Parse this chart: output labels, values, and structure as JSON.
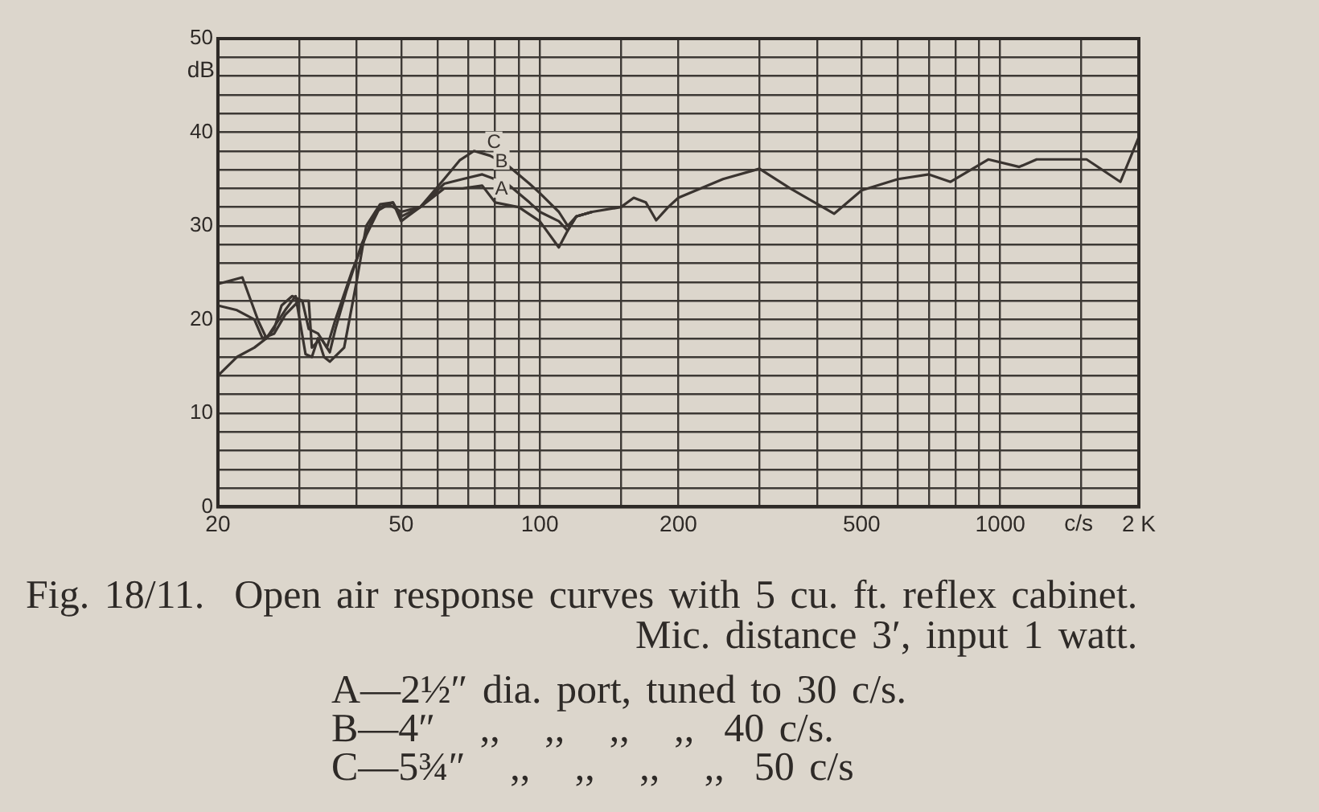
{
  "chart_data": {
    "type": "line",
    "xlabel": "c/s",
    "ylabel": "dB",
    "log": "x",
    "grid": true,
    "legend": false,
    "marker": "none",
    "line_style": "solid",
    "xlim": [
      20,
      2000
    ],
    "ylim": [
      0,
      50
    ],
    "xticks": [
      20,
      {
        "value": 30,
        "label": null
      },
      {
        "value": 40,
        "label": null
      },
      50,
      {
        "value": 60,
        "label": null
      },
      {
        "value": 70,
        "label": null
      },
      {
        "value": 80,
        "label": null
      },
      {
        "value": 90,
        "label": null
      },
      100,
      {
        "value": 150,
        "label": null
      },
      200,
      {
        "value": 300,
        "label": null
      },
      {
        "value": 400,
        "label": null
      },
      500,
      {
        "value": 600,
        "label": null
      },
      {
        "value": 700,
        "label": null
      },
      {
        "value": 800,
        "label": null
      },
      {
        "value": 900,
        "label": null
      },
      1000,
      {
        "value": 1500,
        "label": null
      },
      {
        "value": 2000,
        "label": "2 K"
      }
    ],
    "yticks": [
      0,
      {
        "value": 2,
        "label": null
      },
      {
        "value": 4,
        "label": null
      },
      {
        "value": 6,
        "label": null
      },
      {
        "value": 8,
        "label": null
      },
      10,
      {
        "value": 12,
        "label": null
      },
      {
        "value": 14,
        "label": null
      },
      {
        "value": 16,
        "label": null
      },
      {
        "value": 18,
        "label": null
      },
      20,
      {
        "value": 22,
        "label": null
      },
      {
        "value": 24,
        "label": null
      },
      {
        "value": 26,
        "label": null
      },
      {
        "value": 28,
        "label": null
      },
      30,
      {
        "value": 32,
        "label": null
      },
      {
        "value": 34,
        "label": null
      },
      {
        "value": 36,
        "label": null
      },
      {
        "value": 38,
        "label": null
      },
      40,
      {
        "value": 42,
        "label": null
      },
      {
        "value": 44,
        "label": null
      },
      {
        "value": 46,
        "label": null
      },
      {
        "value": 48,
        "label": null
      },
      50
    ],
    "series": [
      {
        "name": "A",
        "color": "#3a3430",
        "x": [
          20,
          22.6,
          24.5,
          25.5,
          28,
          29.5,
          31,
          32,
          33,
          34,
          35,
          37.6,
          40,
          42,
          45,
          48,
          50,
          55,
          62,
          68,
          75,
          80,
          90,
          100,
          110,
          115,
          120,
          130,
          150,
          160,
          170,
          179,
          190,
          200,
          250,
          300,
          350,
          436,
          500,
          600,
          700,
          780,
          942,
          1100,
          1200,
          1540,
          1824,
          2000
        ],
        "values": [
          23.8,
          24.5,
          19.8,
          18,
          21,
          22.5,
          16.3,
          16,
          18,
          16,
          15.5,
          17,
          24,
          30,
          32.3,
          32.5,
          31,
          32,
          34,
          34,
          34.3,
          32.5,
          32,
          30.5,
          27.7,
          29.5,
          31,
          31.5,
          32,
          33,
          32.5,
          30.6,
          32,
          33,
          35,
          36.1,
          34,
          31.3,
          33.8,
          35,
          35.5,
          34.7,
          37.1,
          36.3,
          37.1,
          37.1,
          34.7,
          39.5
        ]
      },
      {
        "name": "B",
        "color": "#3a3430",
        "x": [
          20,
          22,
          24,
          25,
          26.5,
          28,
          30,
          31.5,
          32,
          33.5,
          35,
          36,
          38,
          41,
          44,
          47,
          50,
          55,
          62,
          68,
          75,
          85,
          95,
          100,
          110,
          115,
          120,
          130
        ],
        "values": [
          21.5,
          21,
          20,
          18,
          18.5,
          20.5,
          22,
          22,
          17,
          18,
          16.5,
          19,
          23,
          28,
          31.5,
          32.3,
          31.5,
          32,
          34.5,
          35,
          35.5,
          34.5,
          32.5,
          31.5,
          30.5,
          29.5,
          31,
          31.5
        ]
      },
      {
        "name": "C",
        "color": "#3a3430",
        "x": [
          20,
          22,
          24,
          25.5,
          26.5,
          27.5,
          29,
          30.5,
          31.5,
          33,
          34.5,
          36,
          39,
          42,
          45,
          48,
          50,
          55,
          62,
          67,
          72,
          78,
          85,
          95,
          100,
          110,
          115,
          120,
          130
        ],
        "values": [
          14,
          16,
          17,
          18,
          19,
          21.5,
          22.5,
          22,
          19,
          18.5,
          17,
          20,
          25,
          29,
          32,
          32.5,
          30.5,
          32,
          35,
          37,
          38,
          37.5,
          36.5,
          34.5,
          33.5,
          31.5,
          30,
          31,
          31.5
        ]
      }
    ],
    "annotations": [
      "Fig. 18/11.  Open air response curves with 5 cu. ft. reflex cabinet.",
      "Mic. distance 3′, input 1 watt.",
      "A—2½″ dia. port, tuned to 30 c/s.",
      "B—4″   ,,   ,,   ,,   ,,  40 c/s.",
      "C—5¾″   ,,   ,,   ,,   ,,  50 c/s"
    ]
  }
}
